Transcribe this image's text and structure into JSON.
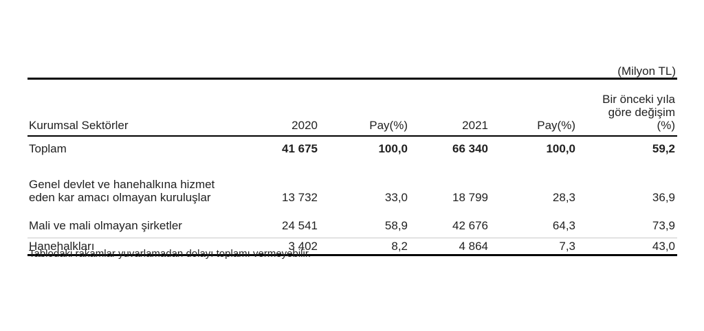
{
  "unit_label": "(Milyon TL)",
  "header": {
    "sector": "Kurumsal Sektörler",
    "y2020": "2020",
    "pay2020": "Pay(%)",
    "y2021": "2021",
    "pay2021": "Pay(%)",
    "change_line1": "Bir önceki yıla",
    "change_line2": "göre değişim",
    "change_line3": "(%)"
  },
  "rows": {
    "toplam": {
      "label": "Toplam",
      "v2020": "41 675",
      "pay2020": "100,0",
      "v2021": "66 340",
      "pay2021": "100,0",
      "change": "59,2"
    },
    "genel": {
      "label_line1": "Genel devlet ve hanehalkına hizmet",
      "label_line2": "eden kar amacı olmayan kuruluşlar",
      "v2020": "13 732",
      "pay2020": "33,0",
      "v2021": "18 799",
      "pay2021": "28,3",
      "change": "36,9"
    },
    "mali": {
      "label": "Mali ve mali olmayan şirketler",
      "v2020": "24 541",
      "pay2020": "58,9",
      "v2021": "42 676",
      "pay2021": "64,3",
      "change": "73,9"
    },
    "hane": {
      "label": "Hanehalkları",
      "v2020": "3 402",
      "pay2020": "8,2",
      "v2021": "4 864",
      "pay2021": "7,3",
      "change": "43,0"
    }
  },
  "footnote": "Tablodaki rakamlar yuvarlamadan dolayı toplamı vermeyebilir.",
  "colors": {
    "text": "#1f1f1f",
    "rule_heavy": "#000000",
    "rule_light": "#c9c9c9",
    "background": "#ffffff"
  },
  "chart_data": {
    "type": "table",
    "unit": "Milyon TL",
    "columns": [
      "Kurumsal Sektörler",
      "2020",
      "Pay(%)",
      "2021",
      "Pay(%)",
      "Bir önceki yıla göre değişim (%)"
    ],
    "rows": [
      [
        "Toplam",
        41675,
        100.0,
        66340,
        100.0,
        59.2
      ],
      [
        "Genel devlet ve hanehalkına hizmet eden kar amacı olmayan kuruluşlar",
        13732,
        33.0,
        18799,
        28.3,
        36.9
      ],
      [
        "Mali ve mali olmayan şirketler",
        24541,
        58.9,
        42676,
        64.3,
        73.9
      ],
      [
        "Hanehalkları",
        3402,
        8.2,
        4864,
        7.3,
        43.0
      ]
    ],
    "footnote": "Tablodaki rakamlar yuvarlamadan dolayı toplamı vermeyebilir."
  }
}
